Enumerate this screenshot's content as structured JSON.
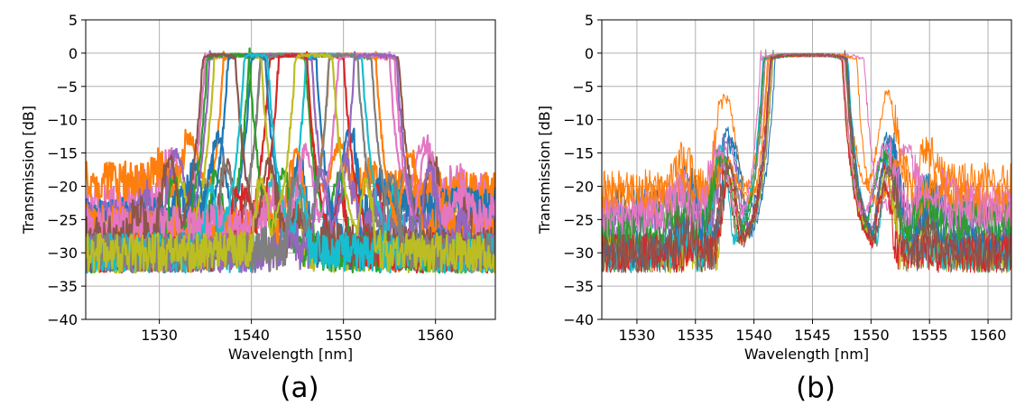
{
  "chart_data": [
    {
      "type": "line",
      "caption": "(a)",
      "xlabel": "Wavelength [nm]",
      "ylabel": "Transmission [dB]",
      "xlim": [
        1522,
        1566.5
      ],
      "ylim": [
        -40,
        5
      ],
      "xticks": [
        1530,
        1540,
        1550,
        1560
      ],
      "yticks": [
        5,
        0,
        -5,
        -10,
        -15,
        -20,
        -25,
        -30,
        -35,
        -40
      ],
      "grid": true,
      "description_of_series": "Many overlapping measured transmission spectra of bandpass filters; each passband near 0 dB, out-of-band floor between -20 and -40 dB",
      "series": [
        {
          "color": "#e377c2",
          "center": 1545.0,
          "width": 20.0,
          "floor": -22,
          "sidelobe": -14
        },
        {
          "color": "#ff7f0e",
          "center": 1541.5,
          "width": 9.0,
          "floor": -20,
          "sidelobe": -13
        },
        {
          "color": "#1f77b4",
          "center": 1543.5,
          "width": 7.0,
          "floor": -24,
          "sidelobe": -12
        },
        {
          "color": "#2ca02c",
          "center": 1542.8,
          "width": 6.0,
          "floor": -31,
          "sidelobe": -18
        },
        {
          "color": "#d62728",
          "center": 1546.0,
          "width": 8.0,
          "floor": -34,
          "sidelobe": -20
        },
        {
          "color": "#9467bd",
          "center": 1541.0,
          "width": 11.0,
          "floor": -26,
          "sidelobe": -15
        },
        {
          "color": "#8c564b",
          "center": 1548.5,
          "width": 15.0,
          "floor": -29,
          "sidelobe": -16
        },
        {
          "color": "#7f7f7f",
          "center": 1547.0,
          "width": 12.0,
          "floor": -32,
          "sidelobe": -17
        },
        {
          "color": "#bcbd22",
          "center": 1538.5,
          "width": 5.0,
          "floor": -35,
          "sidelobe": -18
        },
        {
          "color": "#17becf",
          "center": 1549.0,
          "width": 6.0,
          "floor": -36,
          "sidelobe": -19
        },
        {
          "color": "#1f77b4",
          "center": 1539.5,
          "width": 4.0,
          "floor": -30,
          "sidelobe": -16
        },
        {
          "color": "#ff7f0e",
          "center": 1551.0,
          "width": 5.0,
          "floor": -27,
          "sidelobe": -15
        },
        {
          "color": "#2ca02c",
          "center": 1537.5,
          "width": 4.5,
          "floor": -33,
          "sidelobe": -18
        },
        {
          "color": "#d62728",
          "center": 1544.5,
          "width": 3.0,
          "floor": -35,
          "sidelobe": -21
        },
        {
          "color": "#e377c2",
          "center": 1552.5,
          "width": 6.0,
          "floor": -25,
          "sidelobe": -14
        },
        {
          "color": "#8c564b",
          "center": 1536.5,
          "width": 3.5,
          "floor": -28,
          "sidelobe": -16
        },
        {
          "color": "#9467bd",
          "center": 1553.5,
          "width": 4.5,
          "floor": -31,
          "sidelobe": -17
        },
        {
          "color": "#17becf",
          "center": 1540.5,
          "width": 2.5,
          "floor": -37,
          "sidelobe": -20
        },
        {
          "color": "#7f7f7f",
          "center": 1550.0,
          "width": 3.0,
          "floor": -33,
          "sidelobe": -18
        },
        {
          "color": "#bcbd22",
          "center": 1546.8,
          "width": 4.0,
          "floor": -34,
          "sidelobe": -19
        }
      ]
    },
    {
      "type": "line",
      "caption": "(b)",
      "xlabel": "Wavelength [nm]",
      "ylabel": "Transmission [dB]",
      "xlim": [
        1527,
        1562
      ],
      "ylim": [
        -40,
        5
      ],
      "xticks": [
        1530,
        1535,
        1540,
        1545,
        1550,
        1555,
        1560
      ],
      "yticks": [
        5,
        0,
        -5,
        -10,
        -15,
        -20,
        -25,
        -30,
        -35,
        -40
      ],
      "grid": true,
      "description_of_series": "Many overlapping measured transmission spectra with passbands aligned around 1541-1548 nm; out-of-band floor between -20 and -40 dB",
      "series": [
        {
          "color": "#ff7f0e",
          "center": 1544.5,
          "width": 6.6,
          "floor": -20,
          "sidelobe": -6
        },
        {
          "color": "#1f77b4",
          "center": 1544.6,
          "width": 6.4,
          "floor": -24,
          "sidelobe": -12
        },
        {
          "color": "#2ca02c",
          "center": 1544.4,
          "width": 6.8,
          "floor": -31,
          "sidelobe": -15
        },
        {
          "color": "#d62728",
          "center": 1544.5,
          "width": 6.2,
          "floor": -35,
          "sidelobe": -16
        },
        {
          "color": "#e377c2",
          "center": 1545.2,
          "width": 8.4,
          "floor": -23,
          "sidelobe": -14
        },
        {
          "color": "#9467bd",
          "center": 1544.7,
          "width": 6.5,
          "floor": -27,
          "sidelobe": -13
        },
        {
          "color": "#8c564b",
          "center": 1544.3,
          "width": 6.9,
          "floor": -30,
          "sidelobe": -15
        },
        {
          "color": "#7f7f7f",
          "center": 1544.8,
          "width": 6.3,
          "floor": -33,
          "sidelobe": -17
        },
        {
          "color": "#bcbd22",
          "center": 1544.6,
          "width": 6.0,
          "floor": -35,
          "sidelobe": -18
        },
        {
          "color": "#17becf",
          "center": 1544.4,
          "width": 7.2,
          "floor": -36,
          "sidelobe": -14
        },
        {
          "color": "#1f77b4",
          "center": 1544.9,
          "width": 6.1,
          "floor": -29,
          "sidelobe": -13
        },
        {
          "color": "#ff7f0e",
          "center": 1545.0,
          "width": 7.5,
          "floor": -22,
          "sidelobe": -16
        },
        {
          "color": "#2ca02c",
          "center": 1544.2,
          "width": 6.6,
          "floor": -26,
          "sidelobe": -15
        },
        {
          "color": "#d62728",
          "center": 1544.5,
          "width": 6.0,
          "floor": -37,
          "sidelobe": -19
        },
        {
          "color": "#e377c2",
          "center": 1544.1,
          "width": 7.0,
          "floor": -24,
          "sidelobe": -14
        },
        {
          "color": "#8c564b",
          "center": 1544.7,
          "width": 6.4,
          "floor": -32,
          "sidelobe": -17
        }
      ]
    }
  ]
}
